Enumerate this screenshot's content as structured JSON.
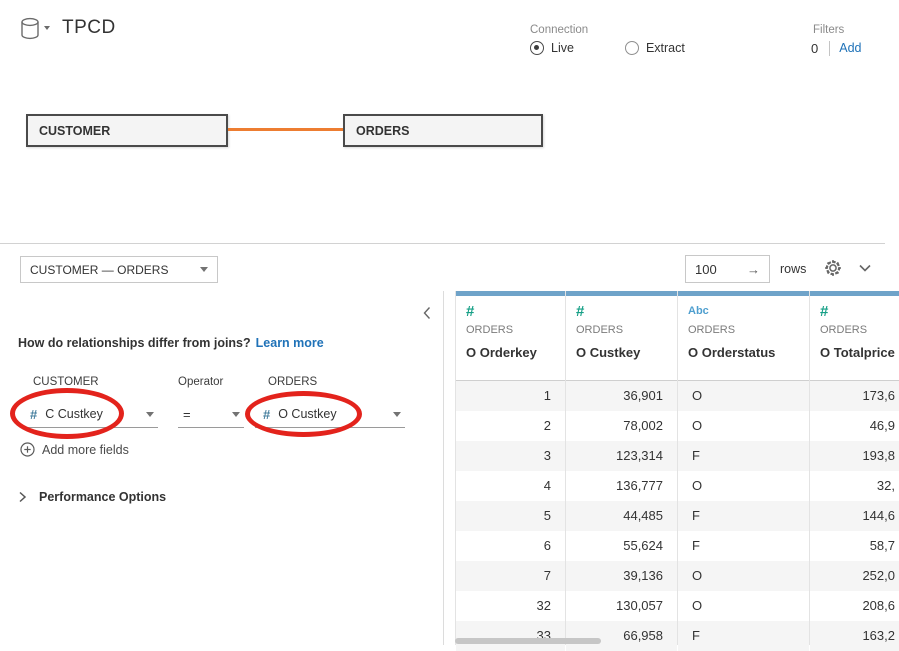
{
  "header": {
    "datasource_title": "TPCD",
    "connection": {
      "label": "Connection",
      "options": [
        {
          "label": "Live",
          "selected": true
        },
        {
          "label": "Extract",
          "selected": false
        }
      ]
    },
    "filters": {
      "label": "Filters",
      "count": "0",
      "add_label": "Add"
    }
  },
  "canvas": {
    "tables": [
      {
        "name": "CUSTOMER"
      },
      {
        "name": "ORDERS"
      }
    ]
  },
  "toolbar": {
    "relationship_selector": "CUSTOMER  —  ORDERS",
    "row_limit_value": "100",
    "rows_label": "rows"
  },
  "icons": {
    "apply_arrow": "→"
  },
  "relationship_panel": {
    "question": "How do relationships differ from joins?",
    "learn_more_label": "Learn more",
    "left_table_label": "CUSTOMER",
    "operator_label": "Operator",
    "right_table_label": "ORDERS",
    "left_field_icon": "#",
    "left_field": "C Custkey",
    "operator_value": "=",
    "right_field_icon": "#",
    "right_field": "O Custkey",
    "add_more_fields_label": "Add more fields",
    "performance_options_label": "Performance Options"
  },
  "grid": {
    "columns": [
      {
        "type": "number",
        "icon": "#",
        "table": "ORDERS",
        "field": "O Orderkey",
        "align": "right"
      },
      {
        "type": "number",
        "icon": "#",
        "table": "ORDERS",
        "field": "O Custkey",
        "align": "right"
      },
      {
        "type": "string",
        "icon": "Abc",
        "table": "ORDERS",
        "field": "O Orderstatus",
        "align": "left"
      },
      {
        "type": "number",
        "icon": "#",
        "table": "ORDERS",
        "field": "O Totalprice",
        "align": "right"
      }
    ],
    "rows": [
      [
        "1",
        "36,901",
        "O",
        "173,6"
      ],
      [
        "2",
        "78,002",
        "O",
        "46,9"
      ],
      [
        "3",
        "123,314",
        "F",
        "193,8"
      ],
      [
        "4",
        "136,777",
        "O",
        "32,"
      ],
      [
        "5",
        "44,485",
        "F",
        "144,6"
      ],
      [
        "6",
        "55,624",
        "F",
        "58,7"
      ],
      [
        "7",
        "39,136",
        "O",
        "252,0"
      ],
      [
        "32",
        "130,057",
        "O",
        "208,6"
      ],
      [
        "33",
        "66,958",
        "F",
        "163,2"
      ]
    ]
  },
  "colors": {
    "accent_blue_link": "#1f72b8",
    "connector_orange": "#ed7d31",
    "annotation_red": "#e3231c",
    "column_strip_blue": "#6fa3c9",
    "number_icon_green": "#17a087",
    "string_icon_blue": "#4f9fcf",
    "panel_field_icon_blue": "#47809f",
    "row_stripe_gray": "#f5f5f5"
  }
}
